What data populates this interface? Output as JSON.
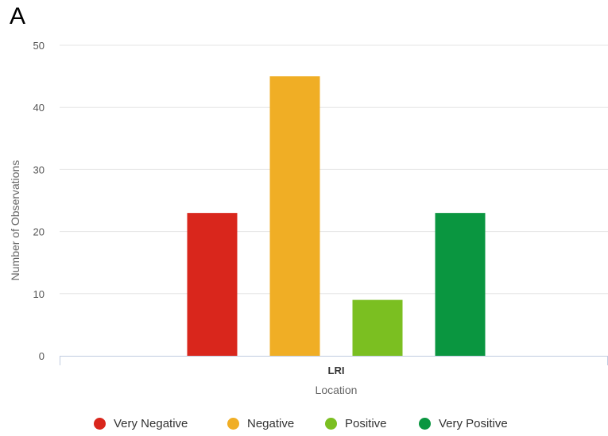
{
  "panel_label": "A",
  "chart_data": {
    "type": "bar",
    "categories": [
      "LRI"
    ],
    "series": [
      {
        "name": "Very Negative",
        "color": "#d9261c",
        "values": [
          23
        ]
      },
      {
        "name": "Negative",
        "color": "#f0ae25",
        "values": [
          45
        ]
      },
      {
        "name": "Positive",
        "color": "#7bbf21",
        "values": [
          9
        ]
      },
      {
        "name": "Very Positive",
        "color": "#0a9640",
        "values": [
          23
        ]
      }
    ],
    "title": "",
    "xlabel": "Location",
    "ylabel": "Number of Observations",
    "ylim": [
      0,
      50
    ],
    "yticks": [
      0,
      10,
      20,
      30,
      40,
      50
    ],
    "grid": true,
    "legend_position": "bottom"
  }
}
